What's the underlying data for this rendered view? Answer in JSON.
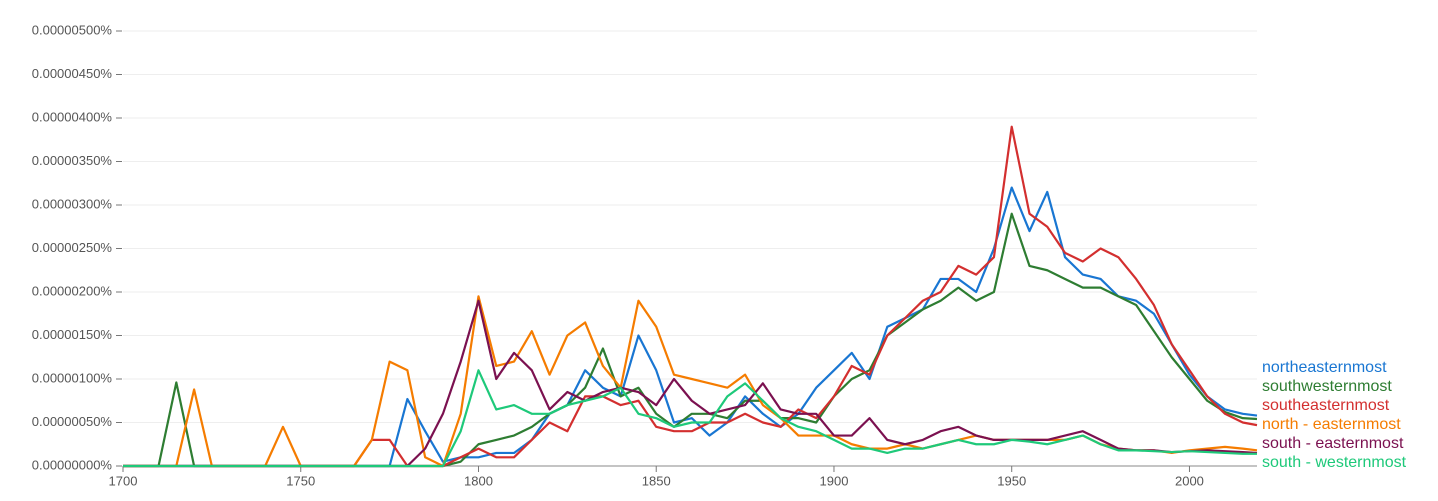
{
  "chart_data": {
    "type": "line",
    "x": [
      1700,
      1705,
      1710,
      1715,
      1720,
      1725,
      1730,
      1735,
      1740,
      1745,
      1750,
      1755,
      1760,
      1765,
      1770,
      1775,
      1780,
      1785,
      1790,
      1795,
      1800,
      1805,
      1810,
      1815,
      1820,
      1825,
      1830,
      1835,
      1840,
      1845,
      1850,
      1855,
      1860,
      1865,
      1870,
      1875,
      1880,
      1885,
      1890,
      1895,
      1900,
      1905,
      1910,
      1915,
      1920,
      1925,
      1930,
      1935,
      1940,
      1945,
      1950,
      1955,
      1960,
      1965,
      1970,
      1975,
      1980,
      1985,
      1990,
      1995,
      2000,
      2005,
      2010,
      2015,
      2019
    ],
    "xlim": [
      1700,
      2019
    ],
    "xticks": [
      1700,
      1750,
      1800,
      1850,
      1900,
      1950,
      2000
    ],
    "ylim": [
      0,
      5e-06
    ],
    "yticks": [
      {
        "value": 0,
        "label": "0.00000000%"
      },
      {
        "value": 5e-07,
        "label": "0.00000050%"
      },
      {
        "value": 1e-06,
        "label": "0.00000100%"
      },
      {
        "value": 1.5e-06,
        "label": "0.00000150%"
      },
      {
        "value": 2e-06,
        "label": "0.00000200%"
      },
      {
        "value": 2.5e-06,
        "label": "0.00000250%"
      },
      {
        "value": 3e-06,
        "label": "0.00000300%"
      },
      {
        "value": 3.5e-06,
        "label": "0.00000350%"
      },
      {
        "value": 4e-06,
        "label": "0.00000400%"
      },
      {
        "value": 4.5e-06,
        "label": "0.00000450%"
      },
      {
        "value": 5e-06,
        "label": "0.00000500%"
      }
    ],
    "grid": true,
    "series": [
      {
        "name": "northeasternmost",
        "color": "#1976d2",
        "values": [
          0,
          0,
          0,
          0,
          0,
          0,
          0,
          0,
          0,
          0,
          0,
          0,
          0,
          0,
          0,
          0,
          7.7e-07,
          4e-07,
          5e-08,
          1e-07,
          1e-07,
          1.5e-07,
          1.5e-07,
          3e-07,
          6e-07,
          7e-07,
          1.1e-06,
          9e-07,
          8e-07,
          1.5e-06,
          1.1e-06,
          5e-07,
          5.5e-07,
          3.5e-07,
          5e-07,
          8e-07,
          6e-07,
          4.5e-07,
          6e-07,
          9e-07,
          1.1e-06,
          1.3e-06,
          1e-06,
          1.6e-06,
          1.7e-06,
          1.8e-06,
          2.15e-06,
          2.15e-06,
          2e-06,
          2.5e-06,
          3.2e-06,
          2.7e-06,
          3.15e-06,
          2.4e-06,
          2.2e-06,
          2.15e-06,
          1.95e-06,
          1.9e-06,
          1.75e-06,
          1.4e-06,
          1.05e-06,
          8e-07,
          6.5e-07,
          6e-07,
          5.8e-07
        ]
      },
      {
        "name": "southwesternmost",
        "color": "#2e7d32",
        "values": [
          0,
          0,
          0,
          9.6e-07,
          0,
          0,
          0,
          0,
          0,
          0,
          0,
          0,
          0,
          0,
          0,
          0,
          0,
          0,
          0,
          5e-08,
          2.5e-07,
          3e-07,
          3.5e-07,
          4.5e-07,
          6e-07,
          7e-07,
          9e-07,
          1.35e-06,
          8e-07,
          9e-07,
          6e-07,
          4.5e-07,
          6e-07,
          6e-07,
          5.5e-07,
          7.5e-07,
          7.5e-07,
          5.5e-07,
          5.5e-07,
          5e-07,
          8e-07,
          1e-06,
          1.1e-06,
          1.5e-06,
          1.65e-06,
          1.8e-06,
          1.9e-06,
          2.05e-06,
          1.9e-06,
          2e-06,
          2.9e-06,
          2.3e-06,
          2.25e-06,
          2.15e-06,
          2.05e-06,
          2.05e-06,
          1.95e-06,
          1.85e-06,
          1.55e-06,
          1.25e-06,
          1e-06,
          7.5e-07,
          6.2e-07,
          5.5e-07,
          5.4e-07
        ]
      },
      {
        "name": "southeasternmost",
        "color": "#d32f2f",
        "values": [
          0,
          0,
          0,
          0,
          0,
          0,
          0,
          0,
          0,
          0,
          0,
          0,
          0,
          0,
          3e-07,
          3e-07,
          0,
          0,
          0,
          1e-07,
          2e-07,
          1e-07,
          1e-07,
          3e-07,
          5e-07,
          4e-07,
          8e-07,
          8e-07,
          7e-07,
          7.5e-07,
          4.5e-07,
          4e-07,
          4e-07,
          5e-07,
          5e-07,
          6e-07,
          5e-07,
          4.5e-07,
          6.5e-07,
          5.5e-07,
          8e-07,
          1.15e-06,
          1.05e-06,
          1.5e-06,
          1.7e-06,
          1.9e-06,
          2e-06,
          2.3e-06,
          2.2e-06,
          2.4e-06,
          3.9e-06,
          2.9e-06,
          2.75e-06,
          2.45e-06,
          2.35e-06,
          2.5e-06,
          2.4e-06,
          2.15e-06,
          1.85e-06,
          1.4e-06,
          1.1e-06,
          8e-07,
          6e-07,
          5e-07,
          4.7e-07
        ]
      },
      {
        "name": "north - easternmost",
        "color": "#f57c00",
        "values": [
          0,
          0,
          0,
          0,
          8.8e-07,
          0,
          0,
          0,
          0,
          4.5e-07,
          0,
          0,
          0,
          0,
          3e-07,
          1.2e-06,
          1.1e-06,
          1e-07,
          0,
          6e-07,
          1.95e-06,
          1.15e-06,
          1.2e-06,
          1.55e-06,
          1.05e-06,
          1.5e-06,
          1.65e-06,
          1.15e-06,
          9e-07,
          1.9e-06,
          1.6e-06,
          1.05e-06,
          1e-06,
          9.5e-07,
          9e-07,
          1.05e-06,
          7e-07,
          5.5e-07,
          3.5e-07,
          3.5e-07,
          3.5e-07,
          2.5e-07,
          2e-07,
          2e-07,
          2.5e-07,
          2e-07,
          2.5e-07,
          3e-07,
          3.5e-07,
          3e-07,
          3e-07,
          3e-07,
          3e-07,
          3e-07,
          3.5e-07,
          2.5e-07,
          2e-07,
          1.8e-07,
          1.8e-07,
          1.5e-07,
          1.8e-07,
          2e-07,
          2.2e-07,
          2e-07,
          1.8e-07
        ]
      },
      {
        "name": "south - easternmost",
        "color": "#7b1150",
        "values": [
          0,
          0,
          0,
          0,
          0,
          0,
          0,
          0,
          0,
          0,
          0,
          0,
          0,
          0,
          0,
          0,
          0,
          2e-07,
          6e-07,
          1.2e-06,
          1.9e-06,
          1e-06,
          1.3e-06,
          1.1e-06,
          6.5e-07,
          8.5e-07,
          7.5e-07,
          8.5e-07,
          9e-07,
          8.5e-07,
          7e-07,
          1e-06,
          7.5e-07,
          6e-07,
          6.5e-07,
          7e-07,
          9.5e-07,
          6.5e-07,
          6e-07,
          6e-07,
          3.5e-07,
          3.5e-07,
          5.5e-07,
          3e-07,
          2.5e-07,
          3e-07,
          4e-07,
          4.5e-07,
          3.5e-07,
          3e-07,
          3e-07,
          3e-07,
          3e-07,
          3.5e-07,
          4e-07,
          3e-07,
          2e-07,
          1.8e-07,
          1.8e-07,
          1.6e-07,
          1.7e-07,
          1.8e-07,
          1.7e-07,
          1.6e-07,
          1.5e-07
        ]
      },
      {
        "name": "south - westernmost",
        "color": "#1ec97a",
        "values": [
          0,
          0,
          0,
          0,
          0,
          0,
          0,
          0,
          0,
          0,
          0,
          0,
          0,
          0,
          0,
          0,
          0,
          0,
          0,
          4e-07,
          1.1e-06,
          6.5e-07,
          7e-07,
          6e-07,
          6e-07,
          7e-07,
          7.5e-07,
          8e-07,
          9e-07,
          6e-07,
          5.5e-07,
          4.5e-07,
          5e-07,
          5e-07,
          8e-07,
          9.5e-07,
          7.5e-07,
          5.5e-07,
          4.5e-07,
          4e-07,
          3e-07,
          2e-07,
          2e-07,
          1.5e-07,
          2e-07,
          2e-07,
          2.5e-07,
          3e-07,
          2.5e-07,
          2.5e-07,
          3e-07,
          2.8e-07,
          2.5e-07,
          3e-07,
          3.5e-07,
          2.5e-07,
          1.8e-07,
          1.8e-07,
          1.7e-07,
          1.6e-07,
          1.7e-07,
          1.6e-07,
          1.5e-07,
          1.4e-07,
          1.4e-07
        ]
      }
    ]
  }
}
